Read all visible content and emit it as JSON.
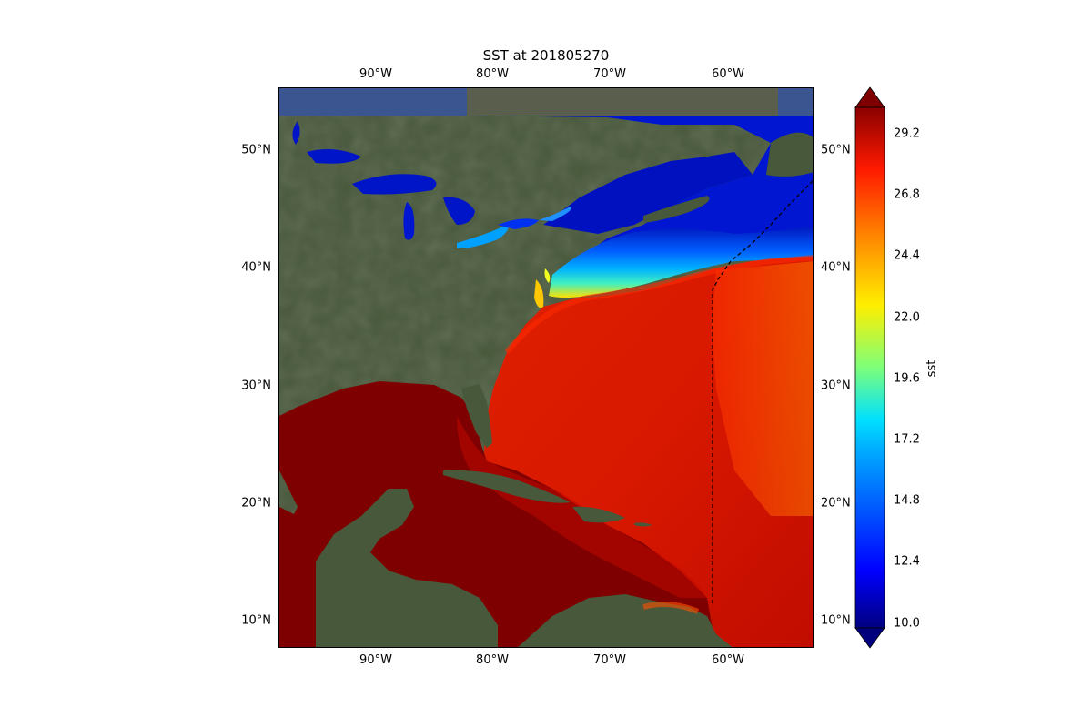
{
  "title": "SST at 201805270",
  "map": {
    "lon_ticks": [
      "90°W",
      "80°W",
      "70°W",
      "60°W"
    ],
    "lat_ticks": [
      "50°N",
      "40°N",
      "30°N",
      "20°N",
      "10°N"
    ],
    "extent": {
      "lon_min": -98.5,
      "lon_max": -53.5,
      "lat_min": 7.6,
      "lat_max": 55.3
    },
    "colormap": "jet",
    "land_basemap": "satellite imagery",
    "track_line": "dashed black line near 61°W from ~11°N to ~38°N, then northeast to ~47°N"
  },
  "colorbar": {
    "label": "sst",
    "min": 10.0,
    "max": 30.0,
    "extend": "both",
    "tick_labels": [
      "29.2",
      "26.8",
      "24.4",
      "22.0",
      "19.6",
      "17.2",
      "14.8",
      "12.4",
      "10.0"
    ]
  },
  "colors": {
    "deep_red": "#7f0000",
    "red": "#d11400",
    "orange": "#ff5a00",
    "cold_blue": "#0014c8",
    "land": "#48583a",
    "track": "#000000"
  }
}
